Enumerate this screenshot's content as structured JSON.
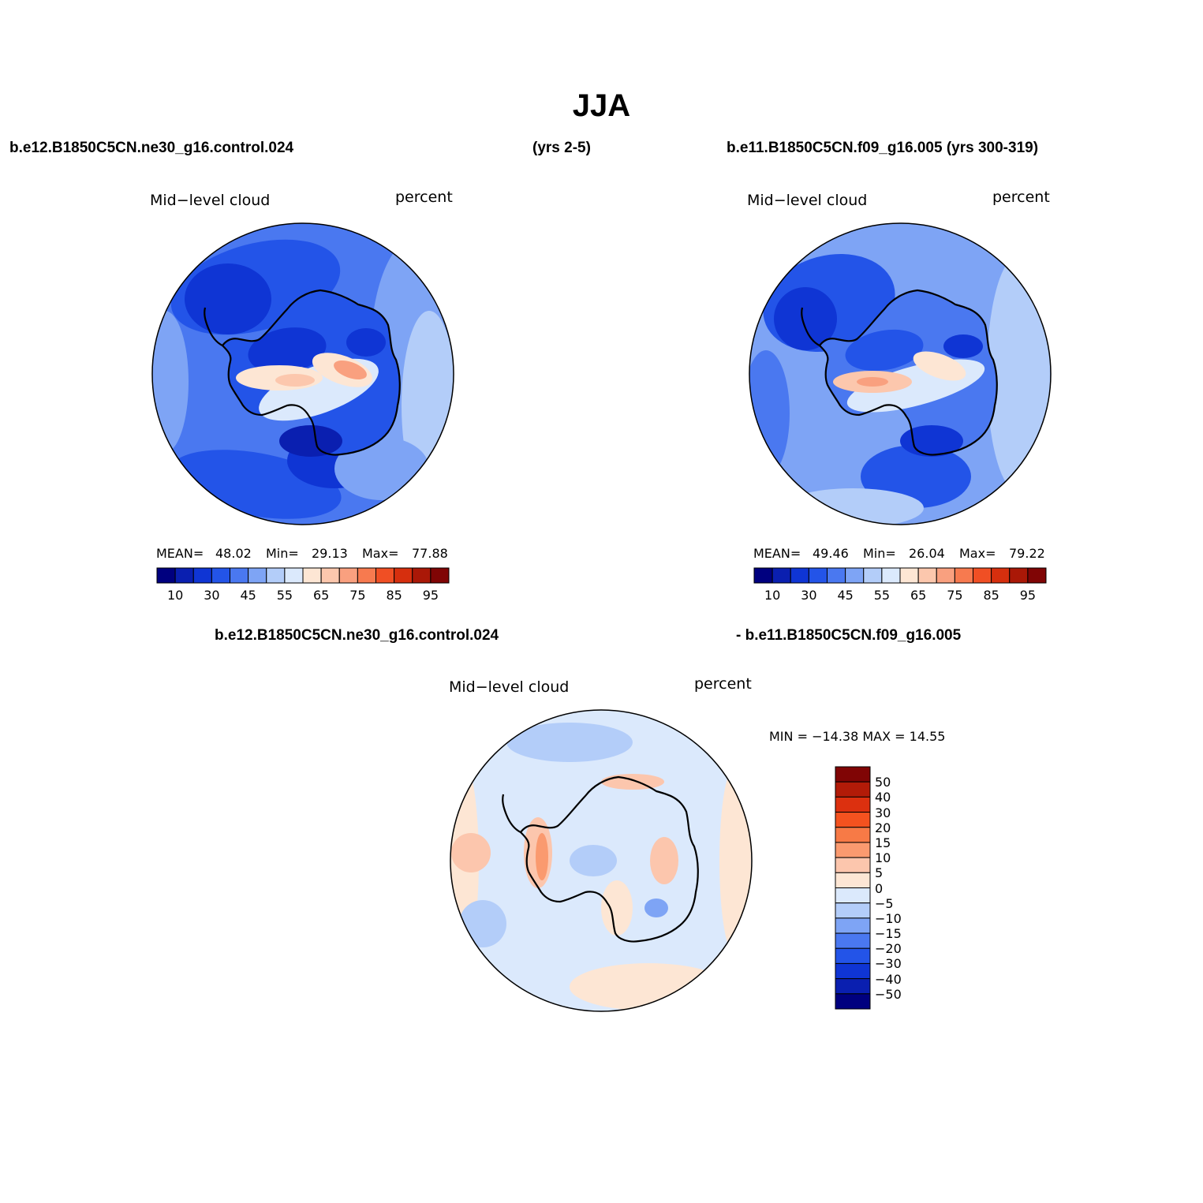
{
  "title": "JJA",
  "headers": {
    "case1": "b.e12.B1850C5CN.ne30_g16.control.024",
    "case1_years": "(yrs 2-5)",
    "case2": "b.e11.B1850C5CN.f09_g16.005 (yrs 300-319)",
    "diff_left": "b.e12.B1850C5CN.ne30_g16.control.024",
    "diff_right": "- b.e11.B1850C5CN.f09_g16.005"
  },
  "panels": [
    {
      "variable": "Mid−level cloud",
      "units": "percent",
      "stats": {
        "mean_label": "MEAN=",
        "mean": "48.02",
        "min_label": "Min=",
        "min": "29.13",
        "max_label": "Max=",
        "max": "77.88"
      }
    },
    {
      "variable": "Mid−level cloud",
      "units": "percent",
      "stats": {
        "mean_label": "MEAN=",
        "mean": "49.46",
        "min_label": "Min=",
        "min": "26.04",
        "max_label": "Max=",
        "max": "79.22"
      }
    },
    {
      "variable": "Mid−level cloud",
      "units": "percent",
      "stats_text": "MIN = −14.38 MAX =  14.55"
    }
  ],
  "colorbar_main": {
    "colors": [
      "#00007f",
      "#0a1fb0",
      "#0f35d4",
      "#2354e8",
      "#4a78f0",
      "#7ea4f5",
      "#b3cdf9",
      "#dbe9fc",
      "#fde6d4",
      "#fcc7ad",
      "#f9a07f",
      "#f77a4f",
      "#f04f24",
      "#d62f0e",
      "#aa1807",
      "#800505"
    ],
    "tick_labels": [
      "10",
      "30",
      "45",
      "55",
      "65",
      "75",
      "85",
      "95"
    ]
  },
  "colorbar_diff": {
    "colors": [
      "#800505",
      "#b21b08",
      "#dc300f",
      "#f4521f",
      "#f77a46",
      "#fa9a6f",
      "#fcc6ad",
      "#fde6d4",
      "#dbe9fc",
      "#b3cdf9",
      "#7ea4f5",
      "#4a78f0",
      "#2354e8",
      "#0f35d4",
      "#0a1fb0",
      "#00007f"
    ],
    "tick_labels": [
      "50",
      "40",
      "30",
      "20",
      "15",
      "10",
      "5",
      "0",
      "−5",
      "−10",
      "−15",
      "−20",
      "−30",
      "−40",
      "−50"
    ]
  }
}
